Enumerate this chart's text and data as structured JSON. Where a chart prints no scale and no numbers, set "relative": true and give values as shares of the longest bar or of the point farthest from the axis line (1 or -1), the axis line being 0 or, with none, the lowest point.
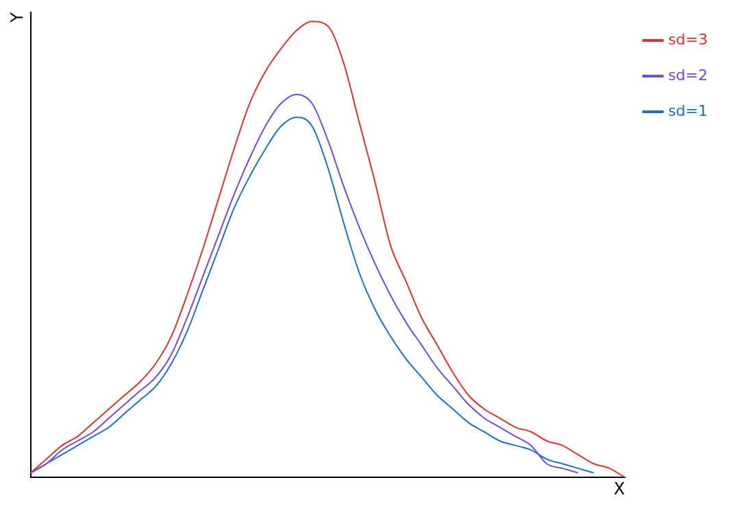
{
  "chart_data": {
    "type": "line",
    "xlabel": "X",
    "ylabel": "Y",
    "relative": true,
    "grid": false,
    "legend": "top right",
    "marker": "none",
    "line_style": "solid",
    "categories": [
      null,
      null,
      null,
      null,
      null,
      null,
      null,
      null,
      null,
      null,
      null,
      null,
      null,
      null,
      null,
      null,
      null,
      null,
      null,
      null,
      null,
      null,
      null,
      null,
      null,
      null,
      null,
      null,
      null,
      null,
      null,
      null,
      null,
      null,
      null,
      null,
      null,
      null,
      null
    ],
    "series": [
      {
        "name": "sd=3",
        "color": "#e03131",
        "values": [
          0.01,
          0.04,
          0.07,
          0.09,
          0.12,
          0.15,
          0.18,
          0.21,
          0.25,
          0.31,
          0.4,
          0.5,
          0.61,
          0.72,
          0.82,
          0.89,
          0.94,
          0.98,
          1,
          0.99,
          0.91,
          0.78,
          0.65,
          0.51,
          0.43,
          0.35,
          0.29,
          0.23,
          0.18,
          0.15,
          0.13,
          0.11,
          0.1,
          0.08,
          0.07,
          0.05,
          0.03,
          0.02,
          0
        ]
      },
      {
        "name": "sd=2",
        "color": "#7048e8",
        "values": [
          0.01,
          0.03,
          0.06,
          0.08,
          0.1,
          0.13,
          0.16,
          0.19,
          0.22,
          0.27,
          0.35,
          0.44,
          0.53,
          0.62,
          0.7,
          0.77,
          0.82,
          0.84,
          0.82,
          0.74,
          0.64,
          0.55,
          0.47,
          0.4,
          0.34,
          0.29,
          0.24,
          0.2,
          0.16,
          0.13,
          0.11,
          0.09,
          0.07,
          0.03,
          0.02,
          0.01,
          null,
          null,
          null
        ]
      },
      {
        "name": "sd=1",
        "color": "#1971c2",
        "values": [
          0.01,
          0.03,
          0.05,
          0.07,
          0.09,
          0.11,
          0.14,
          0.17,
          0.2,
          0.25,
          0.32,
          0.41,
          0.5,
          0.59,
          0.66,
          0.72,
          0.77,
          0.79,
          0.77,
          0.68,
          0.56,
          0.45,
          0.37,
          0.31,
          0.26,
          0.22,
          0.18,
          0.15,
          0.12,
          0.1,
          0.08,
          0.07,
          0.06,
          0.04,
          0.03,
          0.02,
          0.01,
          null,
          null
        ]
      }
    ]
  }
}
